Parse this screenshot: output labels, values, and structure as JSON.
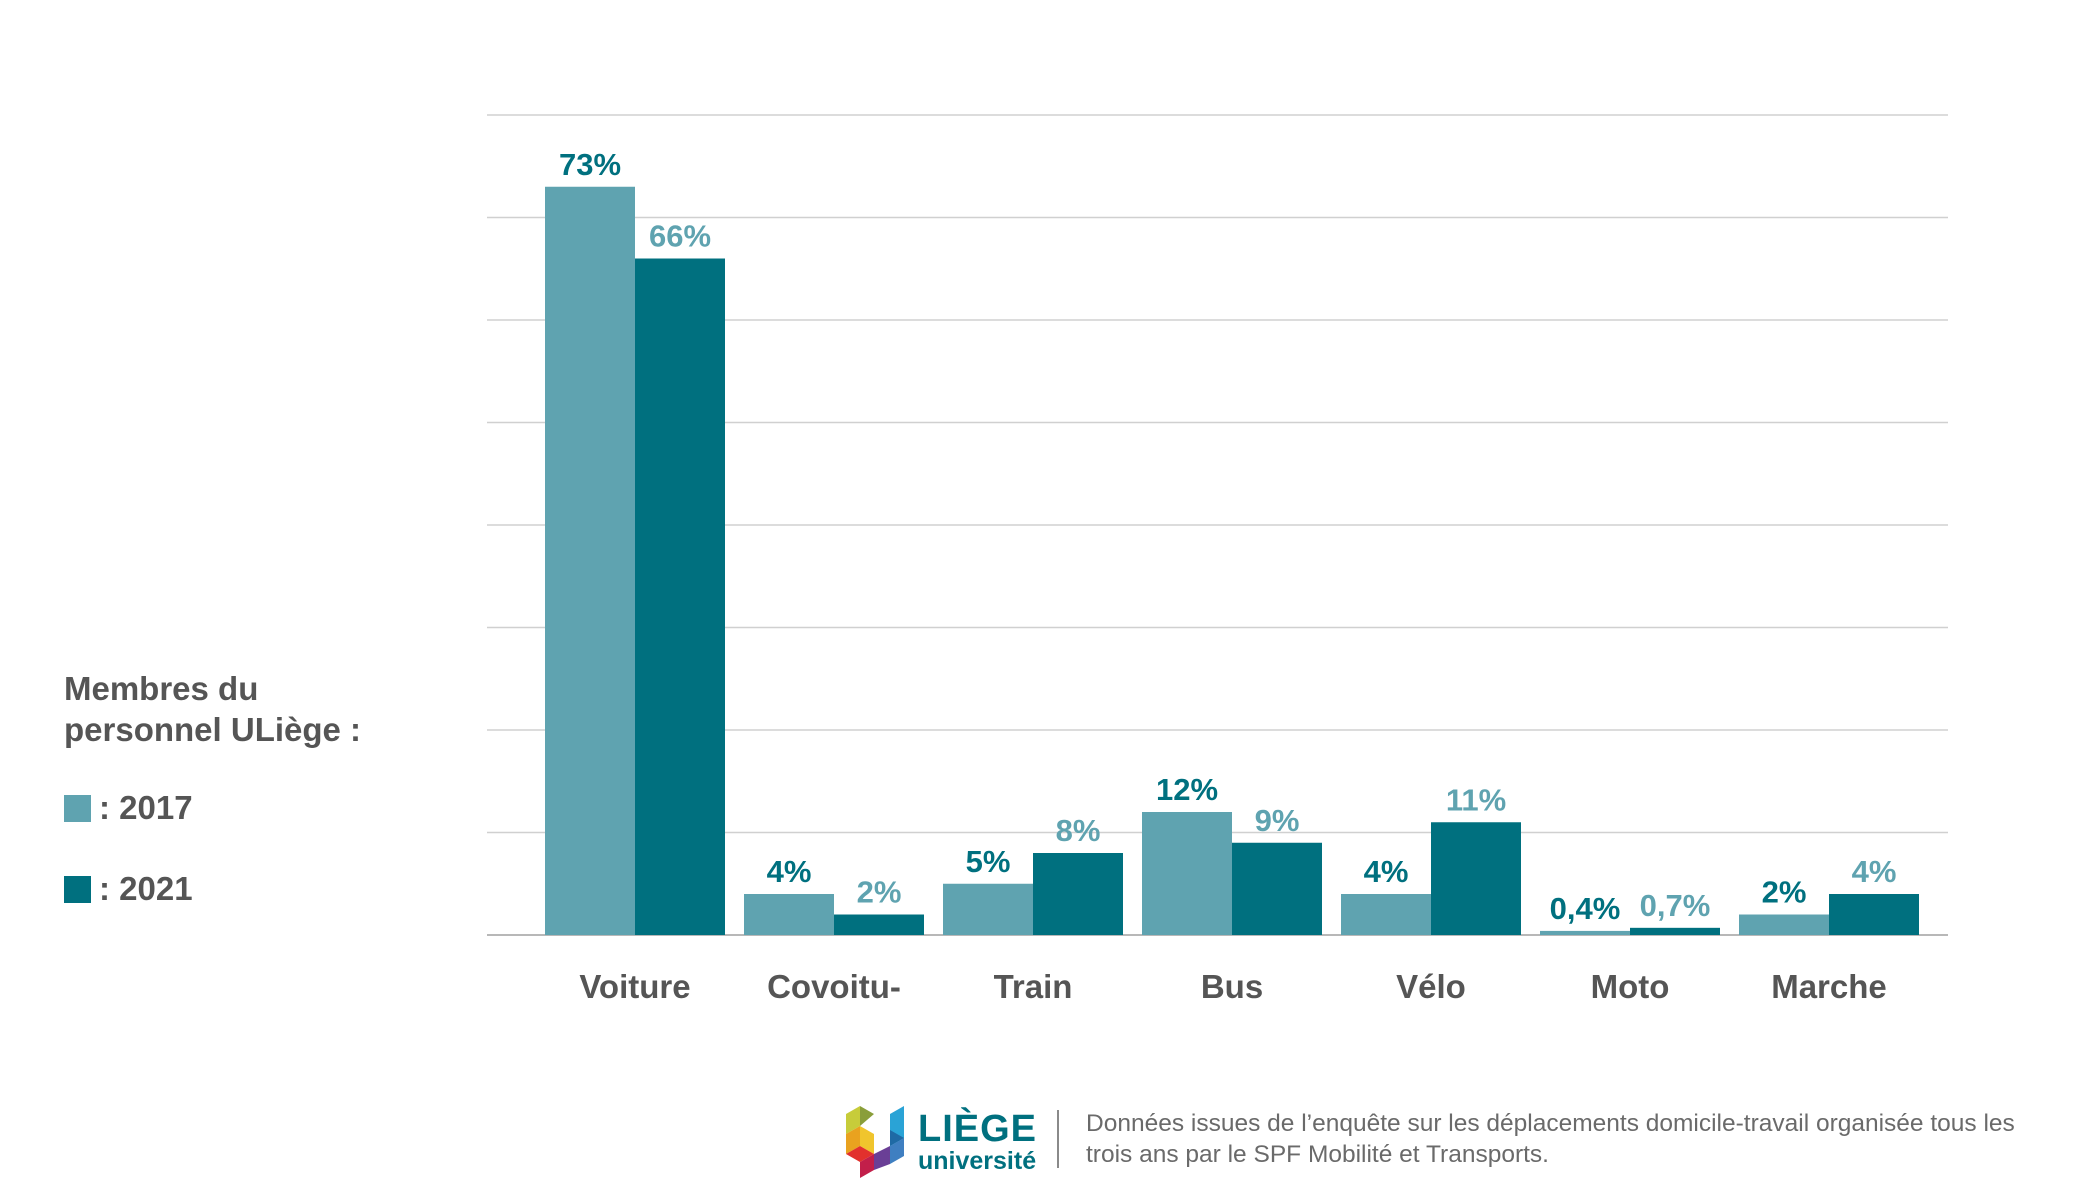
{
  "legend": {
    "title": "Membres du\npersonnel ULiège :",
    "items": [
      {
        "label": ": 2017",
        "color": "#5fa3b0"
      },
      {
        "label": ": 2021",
        "color": "#00707f"
      }
    ]
  },
  "chart_data": {
    "type": "bar",
    "categories": [
      "Voiture",
      "Covoitu-",
      "Train",
      "Bus",
      "Vélo",
      "Moto",
      "Marche"
    ],
    "series": [
      {
        "name": "2017",
        "color": "#5fa3b0",
        "values": [
          73,
          4,
          5,
          12,
          4,
          0.4,
          2
        ],
        "labels": [
          "73%",
          "4%",
          "5%",
          "12%",
          "4%",
          "0,4%",
          "2%"
        ]
      },
      {
        "name": "2021",
        "color": "#00707f",
        "values": [
          66,
          2,
          8,
          9,
          11,
          0.7,
          4
        ],
        "labels": [
          "66%",
          "2%",
          "8%",
          "9%",
          "11%",
          "0,7%",
          "4%"
        ]
      }
    ],
    "label_colors": [
      "#00707f",
      "#5fa3b0"
    ],
    "ylim": [
      0,
      80
    ],
    "gridlines": [
      10,
      20,
      30,
      40,
      50,
      60,
      70,
      80
    ],
    "grid": true,
    "legend_position": "left",
    "xlabel": "",
    "ylabel": ""
  },
  "footer": {
    "logo_name": "LIÈGE",
    "logo_sub": "université",
    "note": "Données issues de l’enquête sur les déplacements domicile-travail organisée tous les trois ans par le SPF Mobilité et Transports."
  }
}
